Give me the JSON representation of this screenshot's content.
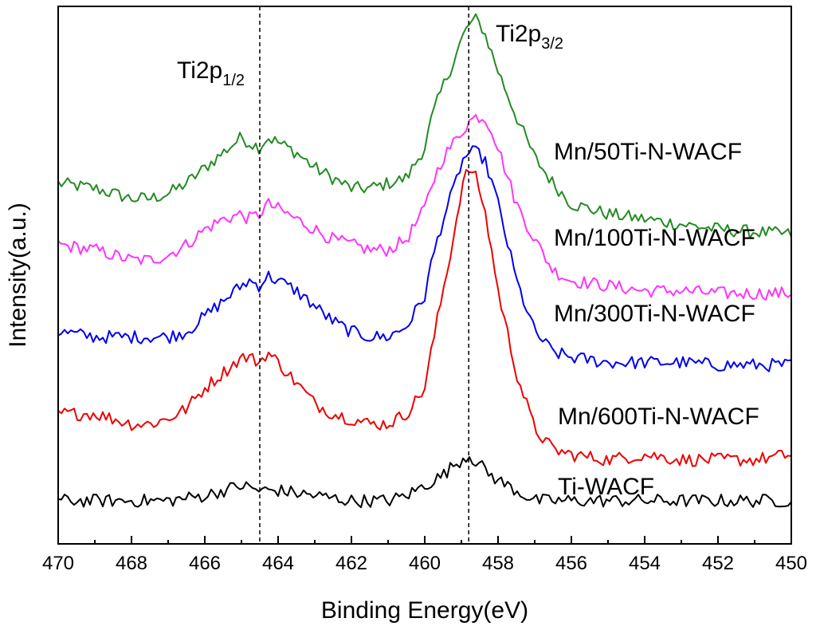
{
  "chart_data": {
    "type": "line",
    "title": "",
    "xlabel": "Binding Energy(eV)",
    "ylabel": "Intensity(a.u.)",
    "xlim": [
      470,
      450
    ],
    "x_reversed": true,
    "ylim": [
      0,
      100
    ],
    "y_ticks_shown": false,
    "grid": false,
    "x_ticks": [
      "470",
      "468",
      "466",
      "464",
      "462",
      "460",
      "458",
      "456",
      "454",
      "452",
      "450"
    ],
    "reference_lines": [
      {
        "x": 464.5,
        "style": "dashed",
        "label_main": "Ti2p",
        "label_sub": "1/2"
      },
      {
        "x": 458.8,
        "style": "dashed",
        "label_main": "Ti2p",
        "label_sub": "3/2"
      }
    ],
    "series": [
      {
        "name": "Mn/50Ti-N-WACF",
        "color": "#228b22",
        "x": [
          470,
          469,
          468,
          467.5,
          467,
          466.5,
          466,
          465.5,
          465,
          464.8,
          464.5,
          464.3,
          464,
          463.5,
          463,
          462.5,
          462,
          461.5,
          461,
          460.5,
          460,
          459.8,
          459.5,
          459.2,
          459,
          458.8,
          458.6,
          458.4,
          458.2,
          458,
          457.5,
          457,
          456.5,
          456,
          455,
          454,
          453,
          452,
          451,
          450
        ],
        "y": [
          67,
          66,
          64,
          64,
          65,
          67,
          70,
          73,
          76,
          75,
          74,
          76,
          75,
          73,
          70,
          68,
          66,
          66,
          67,
          68,
          74,
          80,
          86,
          91,
          95,
          98,
          99,
          97,
          93,
          89,
          80,
          72,
          67,
          63,
          61,
          60,
          59,
          58,
          57.5,
          57
        ]
      },
      {
        "name": "Mn/100Ti-N-WACF",
        "color": "#ff33ff",
        "x": [
          470,
          469,
          468,
          467.5,
          467,
          466.5,
          466,
          465.5,
          465,
          464.8,
          464.5,
          464.3,
          464,
          463.5,
          463,
          462.5,
          462,
          461.5,
          461,
          460.5,
          460,
          459.8,
          459.5,
          459.2,
          459,
          458.8,
          458.6,
          458.4,
          458.2,
          458,
          457.5,
          457,
          456.5,
          456,
          455,
          454,
          453,
          452,
          451,
          450
        ],
        "y": [
          55,
          54,
          52,
          52,
          53,
          55,
          58,
          60,
          61,
          60,
          61,
          63,
          62,
          60,
          58,
          56,
          55,
          54,
          54,
          56,
          62,
          67,
          72,
          75,
          77,
          79,
          80,
          80,
          78,
          74,
          63,
          56,
          50,
          48,
          47,
          46,
          46,
          45.5,
          45.5,
          45.5
        ]
      },
      {
        "name": "Mn/300Ti-N-WACF",
        "color": "#0000ee",
        "x": [
          470,
          469,
          468,
          467.5,
          467,
          466.5,
          466,
          465.5,
          465,
          464.8,
          464.5,
          464.3,
          464,
          463.5,
          463,
          462.5,
          462,
          461.5,
          461,
          460.5,
          460,
          459.8,
          459.5,
          459.2,
          459,
          458.8,
          458.6,
          458.4,
          458.2,
          458,
          457.5,
          457,
          456.5,
          456,
          455,
          454,
          453,
          452,
          451,
          450
        ],
        "y": [
          38,
          37,
          37,
          37,
          37,
          38,
          41,
          44,
          47,
          48,
          47,
          49,
          48,
          46,
          43,
          40,
          38,
          37,
          37,
          39,
          45,
          52,
          60,
          66,
          71,
          73,
          73,
          72,
          68,
          63,
          48,
          38,
          34,
          33,
          32,
          32,
          32,
          31.5,
          31.5,
          31.5
        ]
      },
      {
        "name": "Mn/600Ti-N-WACF",
        "color": "#ee0000",
        "x": [
          470,
          469,
          468,
          467.5,
          467,
          466.5,
          466,
          465.5,
          465,
          464.8,
          464.5,
          464.3,
          464,
          463.5,
          463,
          462.5,
          462,
          461.5,
          461,
          460.5,
          460,
          459.8,
          459.5,
          459.2,
          459,
          458.8,
          458.6,
          458.4,
          458.2,
          458,
          457.5,
          457,
          456.5,
          456,
          455,
          454,
          453,
          452,
          451,
          450
        ],
        "y": [
          22,
          22,
          20,
          20,
          21,
          23,
          27,
          30,
          33,
          33,
          32,
          34,
          32,
          28,
          24,
          22,
          21,
          20,
          20,
          22,
          27,
          35,
          46,
          57,
          66,
          70,
          68,
          63,
          55,
          46,
          30,
          19,
          15,
          14,
          13,
          14,
          13,
          13,
          13,
          14
        ]
      },
      {
        "name": "Ti-WACF",
        "color": "#000000",
        "x": [
          470,
          469,
          468,
          467,
          466,
          465.5,
          465,
          464.5,
          464,
          463,
          462,
          461,
          460.5,
          460,
          459.5,
          459.2,
          459,
          458.8,
          458.5,
          458.2,
          458,
          457.5,
          457,
          456,
          455,
          454,
          453,
          452,
          451,
          450
        ],
        "y": [
          5,
          5,
          5,
          5,
          6,
          7,
          8,
          7,
          7,
          6,
          5,
          5,
          6,
          8,
          10,
          12,
          13,
          14,
          12,
          10,
          9,
          7,
          5,
          5,
          5,
          5,
          5,
          5,
          5,
          5
        ]
      }
    ]
  }
}
